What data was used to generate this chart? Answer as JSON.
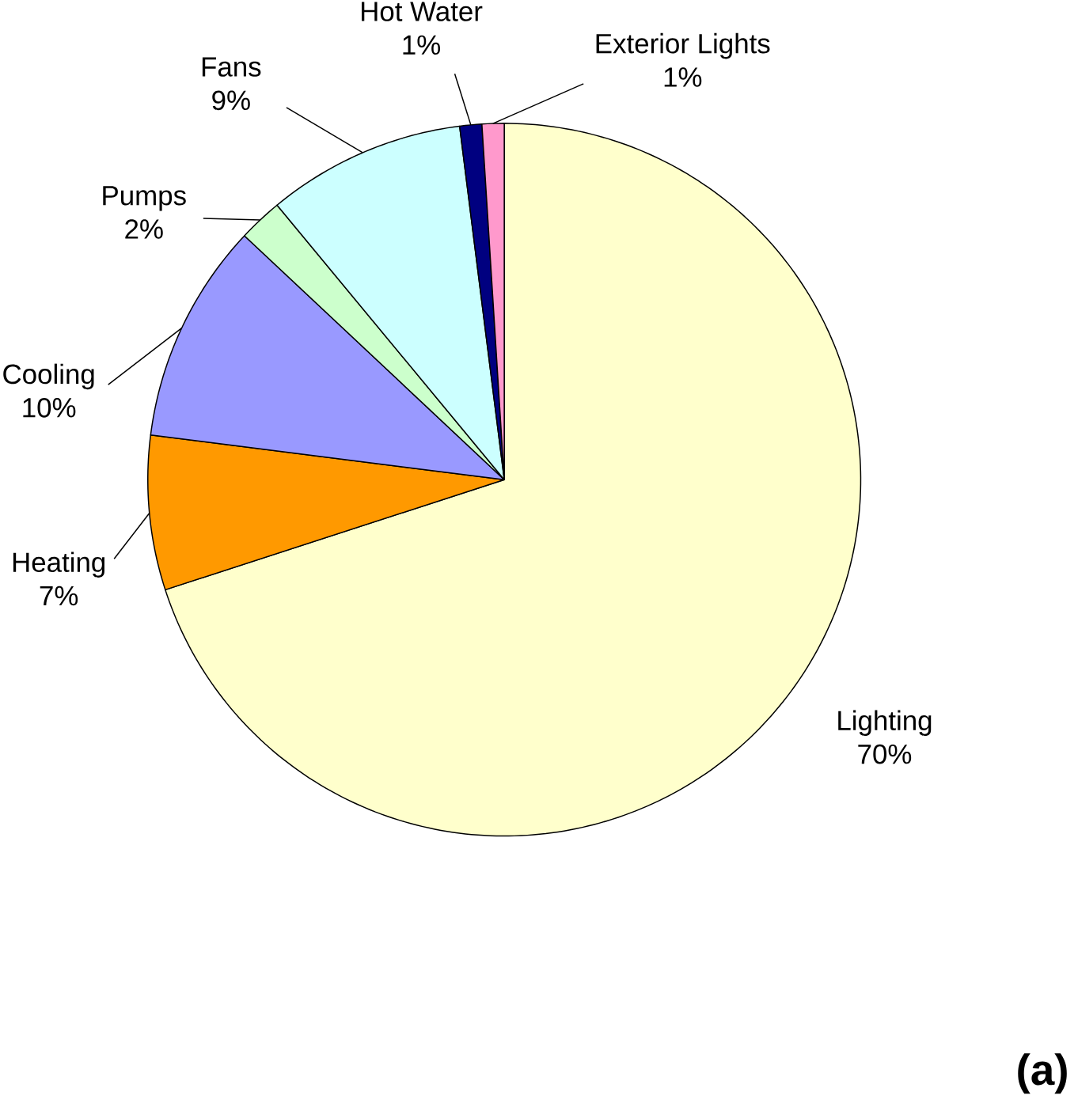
{
  "chart_data": {
    "type": "pie",
    "categories": [
      "Lighting",
      "Heating",
      "Cooling",
      "Pumps",
      "Fans",
      "Hot Water",
      "Exterior Lights"
    ],
    "values": [
      70,
      7,
      10,
      2,
      9,
      1,
      1
    ],
    "value_labels": [
      "70%",
      "7%",
      "10%",
      "2%",
      "9%",
      "1%",
      "1%"
    ],
    "colors": [
      "#ffffcc",
      "#ff9900",
      "#9999ff",
      "#ccffcc",
      "#ccffff",
      "#000080",
      "#ff99cc"
    ],
    "annotations": [
      "(a)"
    ]
  }
}
